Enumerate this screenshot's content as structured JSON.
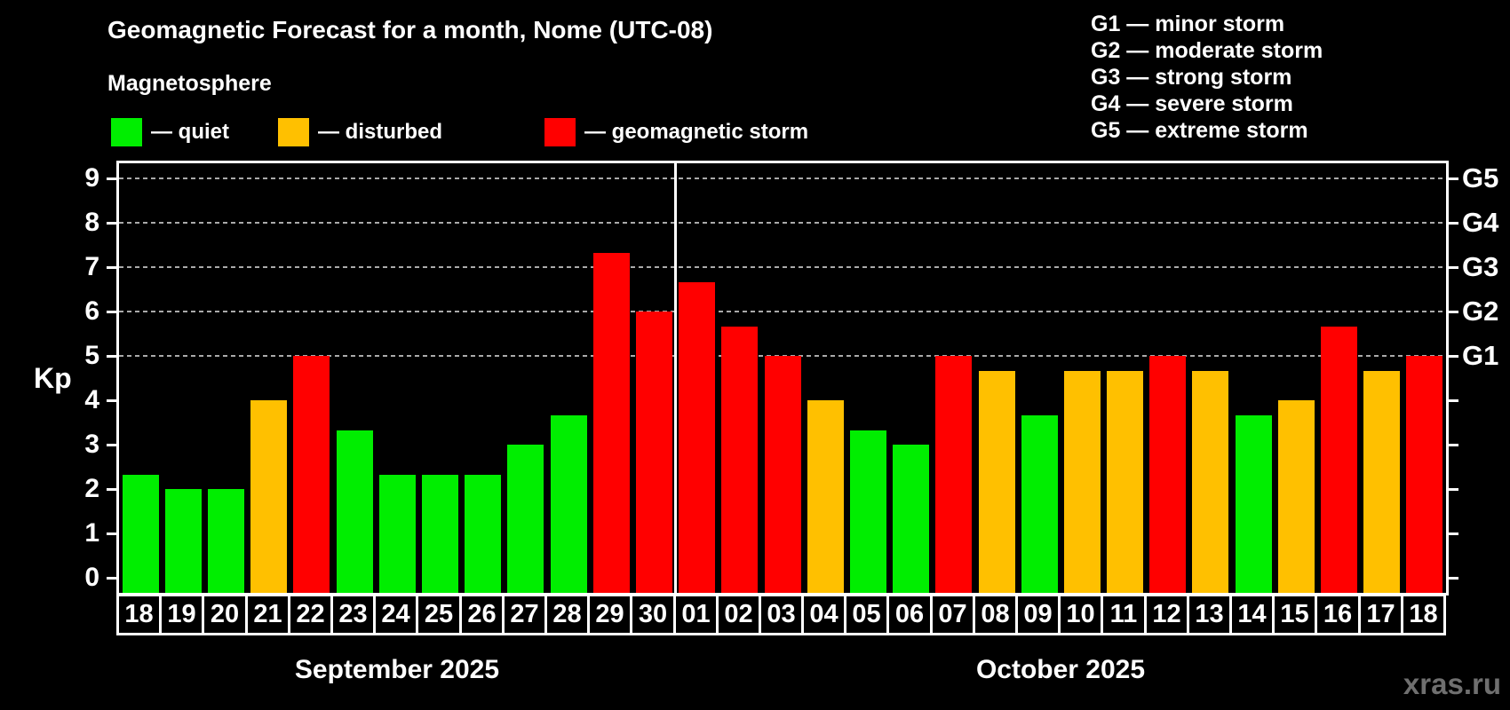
{
  "title": "Geomagnetic Forecast for a month, Nome (UTC-08)",
  "subtitle": "Magnetosphere",
  "legend": {
    "items": [
      {
        "level": "quiet",
        "label": "— quiet"
      },
      {
        "level": "disturbed",
        "label": "— disturbed"
      },
      {
        "level": "storm",
        "label": "— geomagnetic storm"
      }
    ]
  },
  "g_scale_legend": {
    "lines": [
      "G1 — minor storm",
      "G2 — moderate storm",
      "G3 — strong storm",
      "G4 — severe storm",
      "G5 — extreme storm"
    ]
  },
  "watermark": "xras.ru",
  "chart_data": {
    "type": "bar",
    "title": "Geomagnetic Forecast for a month, Nome (UTC-08)",
    "ylabel": "Kp",
    "ylim": [
      -0.35,
      9.35
    ],
    "yticks": [
      0,
      1,
      2,
      3,
      4,
      5,
      6,
      7,
      8,
      9
    ],
    "gridlines_at_kp": [
      5,
      6,
      7,
      8,
      9
    ],
    "grid": "dashed",
    "legend_position": "top",
    "right_axis": [
      {
        "kp": 5,
        "label": "G1"
      },
      {
        "kp": 6,
        "label": "G2"
      },
      {
        "kp": 7,
        "label": "G3"
      },
      {
        "kp": 8,
        "label": "G4"
      },
      {
        "kp": 9,
        "label": "G5"
      }
    ],
    "colors": {
      "quiet": "#00ee00",
      "disturbed": "#ffc000",
      "storm": "#ff0000",
      "axis": "#ffffff",
      "grid": "#aaaaaa",
      "background": "#000000"
    },
    "months": [
      {
        "label": "September 2025",
        "days": [
          {
            "date": "18",
            "kp": 2.33,
            "level": "quiet"
          },
          {
            "date": "19",
            "kp": 2.0,
            "level": "quiet"
          },
          {
            "date": "20",
            "kp": 2.0,
            "level": "quiet"
          },
          {
            "date": "21",
            "kp": 4.0,
            "level": "disturbed"
          },
          {
            "date": "22",
            "kp": 5.0,
            "level": "storm"
          },
          {
            "date": "23",
            "kp": 3.33,
            "level": "quiet"
          },
          {
            "date": "24",
            "kp": 2.33,
            "level": "quiet"
          },
          {
            "date": "25",
            "kp": 2.33,
            "level": "quiet"
          },
          {
            "date": "26",
            "kp": 2.33,
            "level": "quiet"
          },
          {
            "date": "27",
            "kp": 3.0,
            "level": "quiet"
          },
          {
            "date": "28",
            "kp": 3.67,
            "level": "quiet"
          },
          {
            "date": "29",
            "kp": 7.33,
            "level": "storm"
          },
          {
            "date": "30",
            "kp": 6.0,
            "level": "storm"
          }
        ]
      },
      {
        "label": "October 2025",
        "days": [
          {
            "date": "01",
            "kp": 6.67,
            "level": "storm"
          },
          {
            "date": "02",
            "kp": 5.67,
            "level": "storm"
          },
          {
            "date": "03",
            "kp": 5.0,
            "level": "storm"
          },
          {
            "date": "04",
            "kp": 4.0,
            "level": "disturbed"
          },
          {
            "date": "05",
            "kp": 3.33,
            "level": "quiet"
          },
          {
            "date": "06",
            "kp": 3.0,
            "level": "quiet"
          },
          {
            "date": "07",
            "kp": 5.0,
            "level": "storm"
          },
          {
            "date": "08",
            "kp": 4.67,
            "level": "disturbed"
          },
          {
            "date": "09",
            "kp": 3.67,
            "level": "quiet"
          },
          {
            "date": "10",
            "kp": 4.67,
            "level": "disturbed"
          },
          {
            "date": "11",
            "kp": 4.67,
            "level": "disturbed"
          },
          {
            "date": "12",
            "kp": 5.0,
            "level": "storm"
          },
          {
            "date": "13",
            "kp": 4.67,
            "level": "disturbed"
          },
          {
            "date": "14",
            "kp": 3.67,
            "level": "quiet"
          },
          {
            "date": "15",
            "kp": 4.0,
            "level": "disturbed"
          },
          {
            "date": "16",
            "kp": 5.67,
            "level": "storm"
          },
          {
            "date": "17",
            "kp": 4.67,
            "level": "disturbed"
          },
          {
            "date": "18",
            "kp": 5.0,
            "level": "storm"
          }
        ]
      }
    ]
  }
}
